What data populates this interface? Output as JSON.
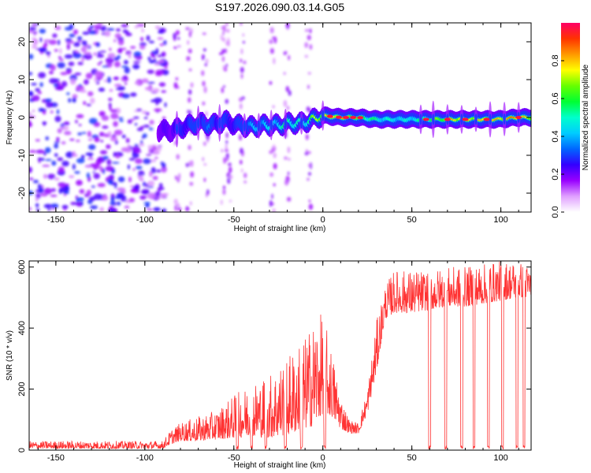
{
  "title": "S197.2026.090.03.14.G05",
  "chart_data": [
    {
      "type": "heatmap",
      "panel": "spectrogram",
      "xlabel": "Height of straight line (km)",
      "ylabel": "Frequency (Hz)",
      "xlim": [
        -165,
        117
      ],
      "ylim": [
        -25,
        25
      ],
      "xticks": [
        -150,
        -100,
        -50,
        0,
        50,
        100
      ],
      "yticks": [
        -20,
        -10,
        0,
        10,
        20
      ],
      "colorbar": {
        "label": "Normalized spectral amplitude",
        "range": [
          0,
          1
        ],
        "ticks": [
          0.0,
          0.2,
          0.4,
          0.6,
          0.8
        ],
        "colors": [
          "#ffffff",
          "#e0a0ff",
          "#9900ff",
          "#3300ff",
          "#0066ff",
          "#00ccff",
          "#00ffcc",
          "#00ff33",
          "#66ff00",
          "#ffff00",
          "#ff9900",
          "#ff3300",
          "#ff0066"
        ]
      },
      "noise_region_x": [
        -165,
        -92
      ],
      "trace": {
        "x": [
          -92,
          -85,
          -78,
          -70,
          -62,
          -55,
          -48,
          -40,
          -32,
          -25,
          -18,
          -12,
          -5,
          0,
          10,
          20,
          30,
          40,
          50,
          60,
          70,
          80,
          90,
          100,
          110,
          117
        ],
        "freq": [
          -3.5,
          -3.5,
          -2.5,
          -1.5,
          -2,
          -1,
          -2,
          -2.5,
          -2,
          -2,
          -1.5,
          -1.5,
          -0.5,
          0.5,
          0,
          0,
          -0.5,
          -0.5,
          -0.5,
          -0.5,
          -0.5,
          -0.5,
          -0.5,
          -0.5,
          0,
          0
        ],
        "amplitude": [
          0.2,
          0.25,
          0.3,
          0.35,
          0.35,
          0.3,
          0.3,
          0.4,
          0.45,
          0.5,
          0.6,
          0.5,
          0.7,
          0.8,
          0.9,
          0.7,
          0.55,
          0.5,
          0.5,
          0.6,
          0.8,
          0.9,
          0.8,
          0.85,
          0.95,
          0.7
        ]
      }
    },
    {
      "type": "line",
      "panel": "snr",
      "xlabel": "Height of straight line (km)",
      "ylabel": "SNR (10 * v/v)",
      "xlim": [
        -165,
        117
      ],
      "ylim": [
        0,
        620
      ],
      "xticks": [
        -150,
        -100,
        -50,
        0,
        50,
        100
      ],
      "yticks": [
        0,
        200,
        400,
        600
      ],
      "line_color": "#ff3333",
      "envelope": {
        "x": [
          -165,
          -90,
          -85,
          -80,
          -70,
          -60,
          -50,
          -40,
          -30,
          -20,
          -10,
          -5,
          0,
          5,
          10,
          15,
          20,
          25,
          30,
          35,
          40,
          50,
          60,
          70,
          80,
          90,
          100,
          110,
          117
        ],
        "low": [
          5,
          5,
          20,
          30,
          30,
          35,
          40,
          45,
          40,
          50,
          70,
          80,
          120,
          110,
          70,
          55,
          55,
          120,
          250,
          430,
          450,
          450,
          460,
          470,
          470,
          480,
          490,
          500,
          500
        ],
        "high": [
          30,
          30,
          70,
          90,
          110,
          130,
          180,
          220,
          250,
          310,
          370,
          430,
          450,
          330,
          180,
          100,
          90,
          200,
          420,
          540,
          590,
          590,
          590,
          600,
          600,
          610,
          620,
          620,
          600
        ]
      },
      "dropouts_x": [
        -48,
        -40,
        -32,
        -21,
        -12,
        1,
        60,
        69,
        78,
        85,
        93,
        101,
        109,
        113
      ]
    }
  ]
}
